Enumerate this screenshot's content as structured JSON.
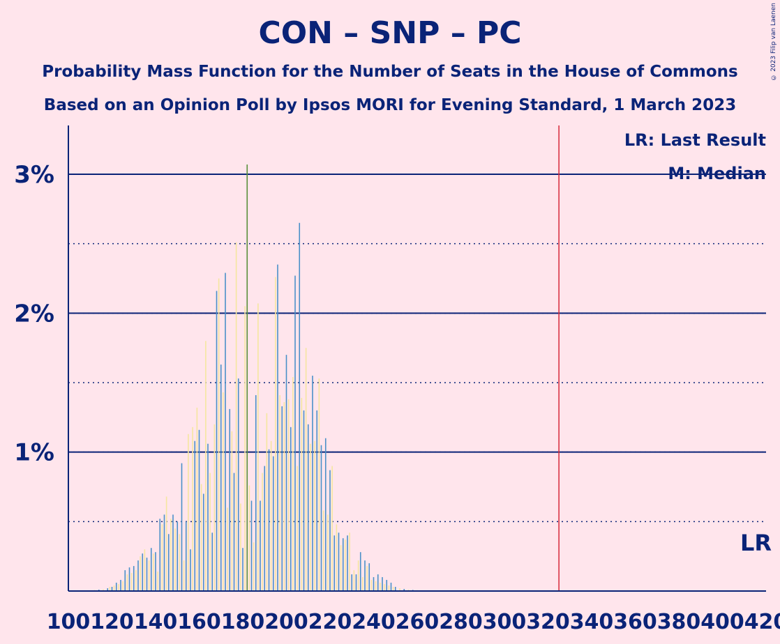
{
  "title": "CON – SNP – PC",
  "subtitle1": "Probability Mass Function for the Number of Seats in the House of Commons",
  "subtitle2": "Based on an Opinion Poll by Ipsos MORI for Evening Standard, 1 March 2023",
  "copyright": "© 2023 Filip van Laenen",
  "chart_data": {
    "type": "bar",
    "xlim": [
      100,
      420
    ],
    "ylim": [
      0,
      3.3
    ],
    "y_unit": "%",
    "y_ticks": [
      {
        "value": 1,
        "label": "1%"
      },
      {
        "value": 2,
        "label": "2%"
      },
      {
        "value": 3,
        "label": "3%"
      }
    ],
    "x_tick_labels": [
      "100",
      "120",
      "140",
      "160",
      "180",
      "200",
      "220",
      "240",
      "260",
      "280",
      "300",
      "320",
      "340",
      "360",
      "380",
      "400",
      "420"
    ],
    "last_result": 325,
    "last_result_label": "LR",
    "legend": [
      "LR: Last Result",
      "M: Median"
    ],
    "colors": {
      "background": "#FFE5EC",
      "axis": "#0a2377",
      "bar_primary": "#4a90c8",
      "bar_secondary": "#f5e6a0",
      "bar_tertiary": "#5a8f3a",
      "last_result_line": "#d62839"
    },
    "x": [
      110,
      112,
      114,
      116,
      118,
      119,
      120,
      121,
      122,
      123,
      124,
      125,
      126,
      127,
      128,
      129,
      130,
      131,
      132,
      133,
      134,
      135,
      136,
      137,
      138,
      139,
      140,
      141,
      142,
      143,
      144,
      145,
      146,
      147,
      148,
      149,
      150,
      151,
      152,
      153,
      154,
      155,
      156,
      157,
      158,
      159,
      160,
      161,
      162,
      163,
      164,
      165,
      166,
      167,
      168,
      169,
      170,
      171,
      172,
      173,
      174,
      175,
      176,
      177,
      178,
      179,
      180,
      181,
      182,
      183,
      184,
      185,
      186,
      187,
      188,
      189,
      190,
      191,
      192,
      193,
      194,
      195,
      196,
      197,
      198,
      199,
      200,
      201,
      202,
      203,
      204,
      205,
      206,
      207,
      208,
      209,
      210,
      211,
      212,
      213,
      214,
      215,
      216,
      217,
      218,
      219,
      220,
      221,
      222,
      223,
      224,
      225,
      226,
      227,
      228,
      229,
      230,
      231,
      232,
      233,
      234,
      235,
      236,
      237,
      238,
      239,
      240,
      241,
      242,
      243,
      244,
      245,
      246,
      247,
      248,
      249,
      250,
      252,
      254,
      256,
      258,
      260,
      262,
      264,
      266,
      268,
      270
    ],
    "values": [
      0.005,
      0.007,
      0.01,
      0.012,
      0.02,
      0.03,
      0.03,
      0.04,
      0.06,
      0.05,
      0.08,
      0.07,
      0.15,
      0.12,
      0.17,
      0.13,
      0.18,
      0.15,
      0.22,
      0.25,
      0.27,
      0.3,
      0.24,
      0.22,
      0.31,
      0.27,
      0.28,
      0.14,
      0.52,
      0.48,
      0.55,
      0.68,
      0.41,
      0.52,
      0.55,
      0.45,
      0.5,
      0.41,
      0.92,
      0.22,
      0.5,
      1.13,
      0.3,
      1.18,
      1.08,
      1.32,
      1.16,
      0.77,
      0.7,
      1.8,
      1.06,
      0.85,
      0.42,
      1.2,
      2.16,
      2.25,
      1.63,
      1.43,
      2.29,
      0.6,
      1.31,
      1.15,
      0.85,
      2.51,
      1.53,
      0.63,
      0.31,
      2.05,
      3.07,
      0.76,
      0.65,
      0.35,
      1.41,
      2.07,
      0.65,
      0.85,
      0.9,
      1.28,
      1.02,
      1.08,
      0.97,
      2.26,
      2.35,
      1.41,
      1.33,
      1.36,
      1.7,
      1.38,
      1.18,
      1.54,
      2.27,
      0.9,
      2.65,
      1.39,
      1.3,
      1.75,
      1.2,
      1.06,
      1.55,
      1.08,
      1.3,
      1.53,
      1.05,
      0.58,
      1.1,
      0.55,
      0.87,
      0.9,
      0.4,
      0.48,
      0.42,
      0.33,
      0.38,
      0.37,
      0.4,
      0.42,
      0.12,
      0.15,
      0.12,
      0.22,
      0.28,
      0.1,
      0.22,
      0.18,
      0.2,
      0.08,
      0.1,
      0.07,
      0.12,
      0.06,
      0.1,
      0.05,
      0.08,
      0.04,
      0.06,
      0.03,
      0.03,
      0.02,
      0.015,
      0.01,
      0.008,
      0.006,
      0.004,
      0.003,
      0.002,
      0.001,
      0.001
    ]
  }
}
